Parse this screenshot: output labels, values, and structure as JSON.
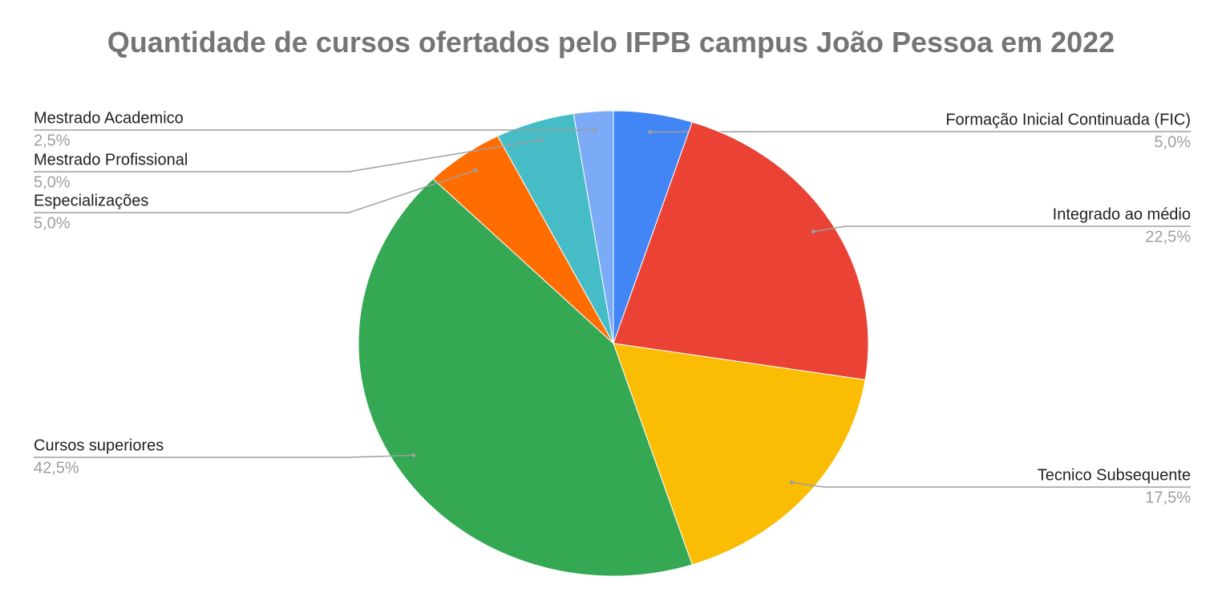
{
  "chart_data": {
    "type": "pie",
    "title": "Quantidade de cursos ofertados pelo IFPB campus João Pessoa em 2022",
    "categories": [
      "Formação Inicial Continuada (FIC)",
      "Integrado ao médio",
      "Tecnico Subsequente",
      "Cursos superiores",
      "Especializações",
      "Mestrado Profissional",
      "Mestrado Academico"
    ],
    "values": [
      5.0,
      22.5,
      17.5,
      42.5,
      5.0,
      5.0,
      2.5
    ],
    "value_labels": [
      "5,0%",
      "22,5%",
      "17,5%",
      "42,5%",
      "5,0%",
      "5,0%",
      "2,5%"
    ],
    "colors": [
      "#4285f4",
      "#ea4335",
      "#fbbc04",
      "#34a853",
      "#ff6d01",
      "#46bdc6",
      "#7baaf7"
    ]
  }
}
